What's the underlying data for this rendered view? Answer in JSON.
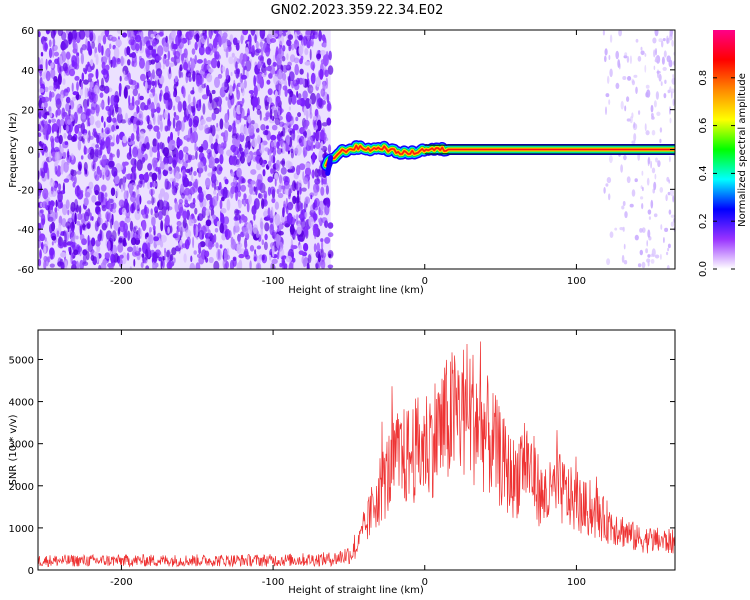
{
  "title": "GN02.2023.359.22.34.E02",
  "chart_data": [
    {
      "type": "heatmap",
      "xlabel": "Height of straight line (km)",
      "ylabel": "Frequency (Hz)",
      "xlim": [
        -255,
        165
      ],
      "ylim": [
        -60,
        60
      ],
      "xticks": [
        -200,
        -100,
        0,
        100
      ],
      "yticks": [
        -60,
        -40,
        -20,
        0,
        20,
        40,
        60
      ],
      "ridge": [
        {
          "x": -65,
          "y": -8
        },
        {
          "x": -62,
          "y": -5
        },
        {
          "x": -55,
          "y": -1
        },
        {
          "x": -45,
          "y": 1
        },
        {
          "x": -35,
          "y": 0
        },
        {
          "x": -28,
          "y": 1
        },
        {
          "x": -20,
          "y": -1
        },
        {
          "x": -10,
          "y": -2
        },
        {
          "x": 0,
          "y": 0
        },
        {
          "x": 20,
          "y": 0
        },
        {
          "x": 165,
          "y": 0
        }
      ],
      "noise_region_x": [
        -255,
        -62
      ],
      "faint_region_x": [
        115,
        165
      ],
      "colorbar": {
        "label": "Normalized spectral amplitude",
        "range": [
          0,
          1
        ],
        "ticks": [
          "0.0",
          "0.2",
          "0.4",
          "0.6",
          "0.8"
        ],
        "colors": [
          "#ffffff",
          "#9933ff",
          "#0000ff",
          "#00ffff",
          "#00ff00",
          "#ffff00",
          "#ff8800",
          "#ff0000",
          "#ff0088"
        ]
      }
    },
    {
      "type": "line",
      "xlabel": "Height of straight line (km)",
      "ylabel": "SNR (10 * v/v)",
      "xlim": [
        -255,
        165
      ],
      "ylim": [
        0,
        5700
      ],
      "xticks": [
        -200,
        -100,
        0,
        100
      ],
      "yticks": [
        0,
        1000,
        2000,
        3000,
        4000,
        5000
      ],
      "color": "#ee3333",
      "envelope": [
        {
          "x": -255,
          "y": 220
        },
        {
          "x": -100,
          "y": 230
        },
        {
          "x": -60,
          "y": 260
        },
        {
          "x": -48,
          "y": 400
        },
        {
          "x": -40,
          "y": 1100
        },
        {
          "x": -30,
          "y": 2300
        },
        {
          "x": -20,
          "y": 3100
        },
        {
          "x": -10,
          "y": 3300
        },
        {
          "x": 0,
          "y": 3600
        },
        {
          "x": 10,
          "y": 4000
        },
        {
          "x": 20,
          "y": 4500
        },
        {
          "x": 28,
          "y": 4600
        },
        {
          "x": 35,
          "y": 4300
        },
        {
          "x": 45,
          "y": 3600
        },
        {
          "x": 55,
          "y": 2800
        },
        {
          "x": 60,
          "y": 2600
        },
        {
          "x": 65,
          "y": 3300
        },
        {
          "x": 70,
          "y": 2900
        },
        {
          "x": 78,
          "y": 2000
        },
        {
          "x": 88,
          "y": 2350
        },
        {
          "x": 100,
          "y": 1900
        },
        {
          "x": 120,
          "y": 1400
        },
        {
          "x": 140,
          "y": 900
        },
        {
          "x": 165,
          "y": 800
        }
      ]
    }
  ]
}
